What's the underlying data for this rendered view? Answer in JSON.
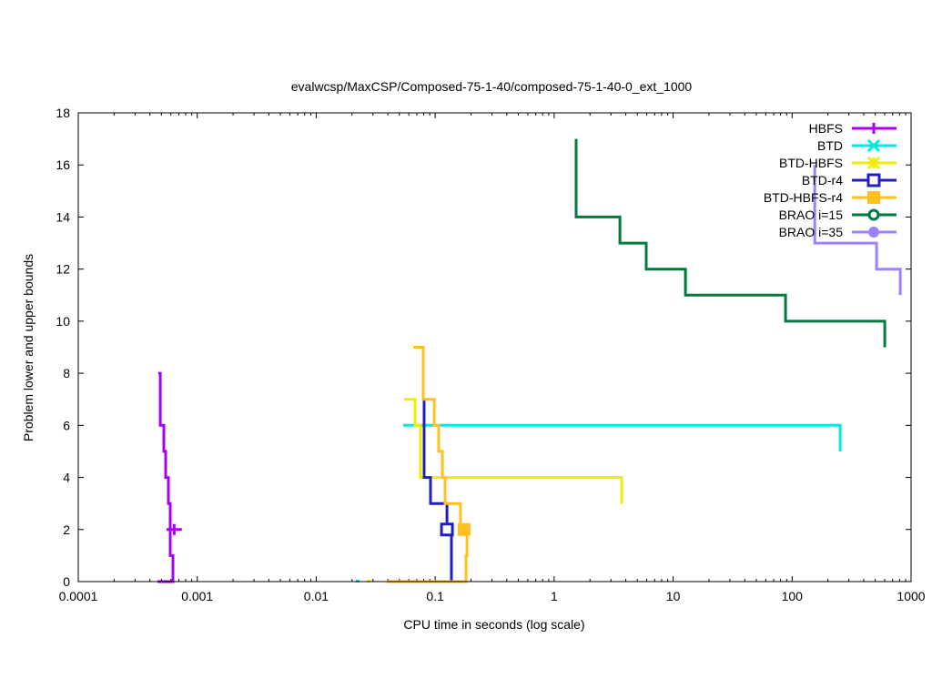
{
  "chart_data": {
    "type": "line",
    "title": "evalwcsp/MaxCSP/Composed-75-1-40/composed-75-1-40-0_ext_1000",
    "xlabel": "CPU time in seconds (log scale)",
    "ylabel": "Problem lower and upper bounds",
    "xscale": "log",
    "xlim": [
      0.0001,
      1000
    ],
    "ylim": [
      0,
      18
    ],
    "xticks": [
      {
        "value": 0.0001,
        "label": "0.0001"
      },
      {
        "value": 0.001,
        "label": "0.001"
      },
      {
        "value": 0.01,
        "label": "0.01"
      },
      {
        "value": 0.1,
        "label": "0.1"
      },
      {
        "value": 1,
        "label": "1"
      },
      {
        "value": 10,
        "label": "10"
      },
      {
        "value": 100,
        "label": "100"
      },
      {
        "value": 1000,
        "label": "1000"
      }
    ],
    "yticks": [
      {
        "value": 0,
        "label": "0"
      },
      {
        "value": 2,
        "label": "2"
      },
      {
        "value": 4,
        "label": "4"
      },
      {
        "value": 6,
        "label": "6"
      },
      {
        "value": 8,
        "label": "8"
      },
      {
        "value": 10,
        "label": "10"
      },
      {
        "value": 12,
        "label": "12"
      },
      {
        "value": 14,
        "label": "14"
      },
      {
        "value": 16,
        "label": "16"
      },
      {
        "value": 18,
        "label": "18"
      }
    ],
    "grid": false,
    "legend_position": "top-right",
    "series": [
      {
        "name": "HBFS",
        "color": "#a800f0",
        "marker": "plus",
        "marker_at": [
          0.00064,
          2
        ],
        "points": [
          [
            0.00047,
            8
          ],
          [
            0.000489,
            8
          ],
          [
            0.000489,
            6
          ],
          [
            0.000524,
            6
          ],
          [
            0.000524,
            5
          ],
          [
            0.000543,
            5
          ],
          [
            0.000543,
            4
          ],
          [
            0.000572,
            4
          ],
          [
            0.000572,
            3
          ],
          [
            0.000593,
            3
          ],
          [
            0.000593,
            1
          ],
          [
            0.000625,
            1
          ],
          [
            0.000625,
            0
          ],
          [
            0.000464,
            0
          ]
        ]
      },
      {
        "name": "BTD",
        "color": "#00e8e8",
        "marker": "cross",
        "marker_at": null,
        "points": [
          [
            0.0538,
            6
          ],
          [
            253.6,
            6
          ],
          [
            253.6,
            5
          ]
        ],
        "extra_points": [
          [
            0.0223,
            0
          ]
        ]
      },
      {
        "name": "BTD-HBFS",
        "color": "#eeee00",
        "marker": "star",
        "marker_at": null,
        "points": [
          [
            0.0548,
            7
          ],
          [
            0.0678,
            7
          ],
          [
            0.0678,
            6
          ],
          [
            0.0753,
            6
          ],
          [
            0.0753,
            4
          ],
          [
            3.7,
            4
          ],
          [
            3.7,
            3
          ]
        ],
        "extra_points": [
          [
            0.0276,
            0
          ]
        ]
      },
      {
        "name": "BTD-r4",
        "color": "#2020c0",
        "marker": "box",
        "marker_at": [
          0.1256,
          2
        ],
        "points": [
          [
            0.0753,
            9
          ],
          [
            0.0794,
            9
          ],
          [
            0.0794,
            7
          ],
          [
            0.0808,
            7
          ],
          [
            0.0808,
            4
          ],
          [
            0.0914,
            4
          ],
          [
            0.0914,
            3
          ],
          [
            0.1256,
            3
          ],
          [
            0.1256,
            2
          ],
          [
            0.137,
            2
          ],
          [
            0.137,
            0
          ]
        ]
      },
      {
        "name": "BTD-HBFS-r4",
        "color": "#ffc020",
        "marker": "filled-box",
        "marker_at": [
          0.175,
          2
        ],
        "points": [
          [
            0.0654,
            9
          ],
          [
            0.0794,
            9
          ],
          [
            0.0794,
            7
          ],
          [
            0.0982,
            7
          ],
          [
            0.0982,
            6
          ],
          [
            0.107,
            6
          ],
          [
            0.107,
            5
          ],
          [
            0.115,
            5
          ],
          [
            0.115,
            4
          ],
          [
            0.121,
            4
          ],
          [
            0.121,
            3
          ],
          [
            0.163,
            3
          ],
          [
            0.163,
            2
          ],
          [
            0.185,
            2
          ],
          [
            0.185,
            1
          ],
          [
            0.182,
            1
          ],
          [
            0.182,
            0
          ],
          [
            0.0393,
            0
          ]
        ]
      },
      {
        "name": "BRAO i=15",
        "color": "#007a3d",
        "marker": "circle",
        "marker_at": null,
        "points": [
          [
            1.53,
            17
          ],
          [
            1.53,
            14
          ],
          [
            3.57,
            14
          ],
          [
            3.57,
            13
          ],
          [
            5.94,
            13
          ],
          [
            5.94,
            12
          ],
          [
            12.7,
            12
          ],
          [
            12.7,
            11
          ],
          [
            88.1,
            11
          ],
          [
            88.1,
            10
          ],
          [
            601,
            10
          ],
          [
            601,
            9
          ]
        ]
      },
      {
        "name": "BRAO i=35",
        "color": "#a080ff",
        "marker": "filled-circle",
        "marker_at": null,
        "points": [
          [
            155,
            16
          ],
          [
            155,
            13
          ],
          [
            513,
            13
          ],
          [
            513,
            12
          ],
          [
            811,
            12
          ],
          [
            811,
            11
          ]
        ]
      }
    ]
  }
}
